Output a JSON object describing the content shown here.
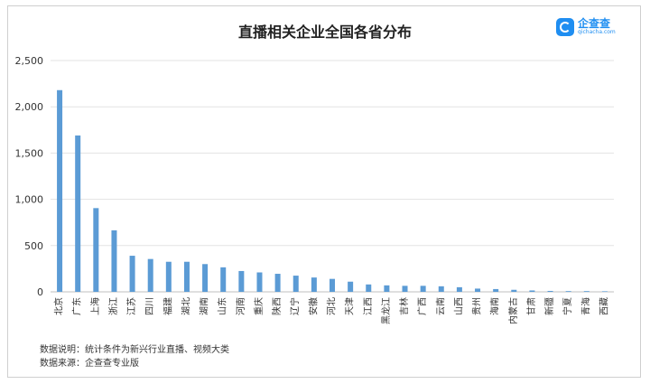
{
  "chart_data": {
    "type": "bar",
    "title": "直播相关企业全国各省分布",
    "categories": [
      "北京",
      "广东",
      "上海",
      "浙江",
      "江苏",
      "四川",
      "福建",
      "湖北",
      "湖南",
      "山东",
      "河南",
      "重庆",
      "陕西",
      "辽宁",
      "安徽",
      "河北",
      "天津",
      "江西",
      "黑龙江",
      "吉林",
      "广西",
      "云南",
      "山西",
      "贵州",
      "海南",
      "内蒙古",
      "甘肃",
      "新疆",
      "宁夏",
      "青海",
      "西藏"
    ],
    "values": [
      2180,
      1690,
      905,
      665,
      390,
      355,
      325,
      325,
      300,
      265,
      225,
      210,
      195,
      175,
      155,
      140,
      110,
      80,
      70,
      65,
      65,
      60,
      50,
      35,
      30,
      22,
      15,
      10,
      8,
      8,
      6
    ],
    "yticks": [
      "0",
      "500",
      "1,000",
      "1,500",
      "2,000",
      "2,500"
    ],
    "ylim": [
      0,
      2500
    ],
    "bar_color": "#5b9bd5",
    "grid": true,
    "xlabel": "",
    "ylabel": ""
  },
  "brand": {
    "name": "企查查",
    "domain": "qichacha.com",
    "color": "#1f8ef1",
    "icon": "qichacha-logo-icon"
  },
  "notes": {
    "line1": "数据说明：统计条件为新兴行业直播、视频大类",
    "line2": "数据来源：企查查专业版"
  }
}
